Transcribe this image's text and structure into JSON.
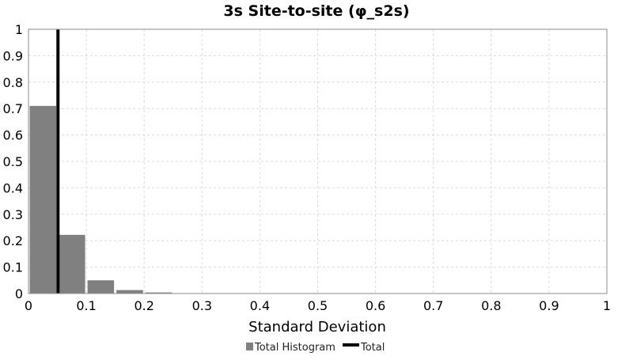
{
  "chart_data": {
    "type": "bar",
    "title": "3s Site-to-site (φ_s2s)",
    "xlabel": "Standard Deviation",
    "ylabel": "",
    "xlim": [
      0,
      1
    ],
    "ylim": [
      0,
      1
    ],
    "x_ticks": [
      "0",
      "0.1",
      "0.2",
      "0.3",
      "0.4",
      "0.5",
      "0.6",
      "0.7",
      "0.8",
      "0.9",
      "1"
    ],
    "y_ticks": [
      "0",
      "0.1",
      "0.2",
      "0.3",
      "0.4",
      "0.5",
      "0.6",
      "0.7",
      "0.8",
      "0.9",
      "1"
    ],
    "grid": true,
    "bin_width": 0.05,
    "series": [
      {
        "name": "Total Histogram",
        "kind": "histogram",
        "color": "#808080",
        "bins": [
          {
            "x0": 0.0,
            "x1": 0.05,
            "value": 0.71
          },
          {
            "x0": 0.05,
            "x1": 0.1,
            "value": 0.222
          },
          {
            "x0": 0.1,
            "x1": 0.15,
            "value": 0.05
          },
          {
            "x0": 0.15,
            "x1": 0.2,
            "value": 0.013
          },
          {
            "x0": 0.2,
            "x1": 0.25,
            "value": 0.004
          },
          {
            "x0": 0.25,
            "x1": 0.3,
            "value": 0.0015
          },
          {
            "x0": 0.3,
            "x1": 0.35,
            "value": 0.0006
          }
        ]
      },
      {
        "name": "Total",
        "kind": "vertical-line",
        "color": "#000000",
        "x": 0.051
      }
    ],
    "legend": {
      "position": "bottom-center",
      "items": [
        {
          "label": "Total Histogram",
          "color": "#808080",
          "marker": "square"
        },
        {
          "label": "Total",
          "color": "#000000",
          "marker": "line"
        }
      ]
    }
  }
}
